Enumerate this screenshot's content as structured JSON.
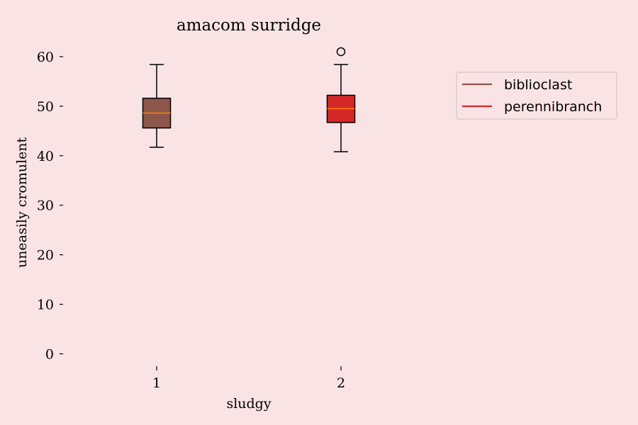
{
  "chart_data": {
    "type": "box",
    "title": "amacom surridge",
    "xlabel": "sludgy",
    "ylabel": "uneasily cromulent",
    "categories": [
      "1",
      "2"
    ],
    "ylim": [
      -2.5,
      65
    ],
    "yticks": [
      0,
      10,
      20,
      30,
      40,
      50,
      60
    ],
    "grid": false,
    "legend_position": "top-right",
    "median_color": "#ff7f0e",
    "series": [
      {
        "name": "biblioclast",
        "color": "#8c564b",
        "whisker_low": 41.7,
        "q1": 45.6,
        "median": 48.6,
        "q3": 51.6,
        "whisker_high": 58.4,
        "outliers": []
      },
      {
        "name": "perennibranch",
        "color": "#d62728",
        "whisker_low": 40.8,
        "q1": 46.7,
        "median": 49.5,
        "q3": 52.2,
        "whisker_high": 58.4,
        "outliers": [
          61.0
        ]
      }
    ]
  }
}
